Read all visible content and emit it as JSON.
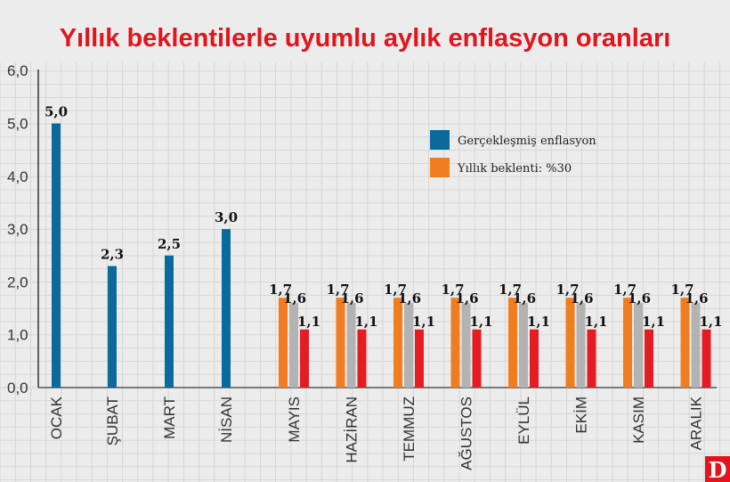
{
  "chart_data": {
    "type": "bar",
    "title": "Yıllık beklentilerle uyumlu aylık enflasyon oranları",
    "xlabel": "",
    "ylabel": "",
    "ylim": [
      0,
      6
    ],
    "yticks": [
      "0,0",
      "1,0",
      "2,0",
      "3,0",
      "4,0",
      "5,0",
      "6,0"
    ],
    "grid": true,
    "legend_position": "top-right",
    "categories": [
      "OCAK",
      "ŞUBAT",
      "MART",
      "NİSAN",
      "MAYIS",
      "HAZİRAN",
      "TEMMUZ",
      "AĞUSTOS",
      "EYLÜL",
      "EKİM",
      "KASIM",
      "ARALIK"
    ],
    "series": [
      {
        "name": "Gerçekleşmiş enflasyon",
        "color": "#0b6a9c",
        "values": [
          5.0,
          2.3,
          2.5,
          3.0,
          null,
          null,
          null,
          null,
          null,
          null,
          null,
          null
        ],
        "labels": [
          "5,0",
          "2,3",
          "2,5",
          "3,0"
        ]
      },
      {
        "name": "Yıllık beklenti: %30",
        "color": "#f07d1f",
        "values": [
          null,
          null,
          null,
          null,
          1.7,
          1.7,
          1.7,
          1.7,
          1.7,
          1.7,
          1.7,
          1.7
        ],
        "label": "1,7"
      },
      {
        "color": "#b3b3b3",
        "values": [
          null,
          null,
          null,
          null,
          1.6,
          1.6,
          1.6,
          1.6,
          1.6,
          1.6,
          1.6,
          1.6
        ],
        "label": "1,6"
      },
      {
        "color": "#e41d25",
        "values": [
          null,
          null,
          null,
          null,
          1.1,
          1.1,
          1.1,
          1.1,
          1.1,
          1.1,
          1.1,
          1.1
        ],
        "label": "1,1"
      }
    ]
  },
  "logo": "D"
}
